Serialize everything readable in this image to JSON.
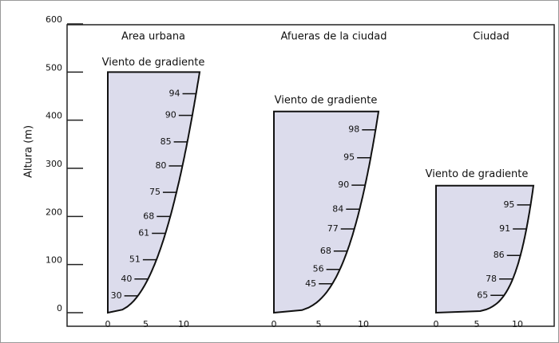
{
  "y_axis": {
    "label": "Altura (m)",
    "ylim": [
      0,
      600
    ],
    "yticks": [
      0,
      100,
      200,
      300,
      400,
      500,
      600
    ]
  },
  "panels": [
    {
      "title": "Area urbana",
      "top_label": "Viento de gradiente",
      "top": 500,
      "xticks": [
        0,
        5,
        10
      ],
      "levels": [
        {
          "value": 94,
          "height": 455
        },
        {
          "value": 90,
          "height": 410
        },
        {
          "value": 85,
          "height": 355
        },
        {
          "value": 80,
          "height": 305
        },
        {
          "value": 75,
          "height": 250
        },
        {
          "value": 68,
          "height": 200
        },
        {
          "value": 61,
          "height": 165
        },
        {
          "value": 51,
          "height": 110
        },
        {
          "value": 40,
          "height": 70
        },
        {
          "value": 30,
          "height": 35
        }
      ]
    },
    {
      "title": "Afueras de la ciudad",
      "top_label": "Viento de gradiente",
      "top": 418,
      "xticks": [
        0,
        5,
        10
      ],
      "levels": [
        {
          "value": 98,
          "height": 380
        },
        {
          "value": 95,
          "height": 322
        },
        {
          "value": 90,
          "height": 265
        },
        {
          "value": 84,
          "height": 215
        },
        {
          "value": 77,
          "height": 174
        },
        {
          "value": 68,
          "height": 128
        },
        {
          "value": 56,
          "height": 90
        },
        {
          "value": 45,
          "height": 60
        }
      ]
    },
    {
      "title": "Ciudad",
      "top_label": "Viento de gradiente",
      "top": 264,
      "xticks": [
        0,
        5,
        10
      ],
      "levels": [
        {
          "value": 95,
          "height": 224
        },
        {
          "value": 91,
          "height": 174
        },
        {
          "value": 86,
          "height": 119
        },
        {
          "value": 78,
          "height": 70
        },
        {
          "value": 65,
          "height": 36
        }
      ]
    }
  ]
}
